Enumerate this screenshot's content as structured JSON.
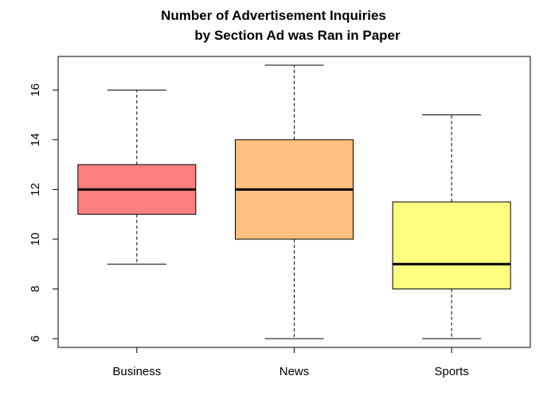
{
  "chart_data": {
    "type": "box",
    "title_line1": "Number of Advertisement Inquiries",
    "title_line2": "by Section Ad was Ran in Paper",
    "categories": [
      "Business",
      "News",
      "Sports"
    ],
    "boxes": [
      {
        "category": "Business",
        "min": 9,
        "q1": 11,
        "median": 12,
        "q3": 13,
        "max": 16,
        "color": "#FF7F7F"
      },
      {
        "category": "News",
        "min": 6,
        "q1": 10,
        "median": 12,
        "q3": 14,
        "max": 17,
        "color": "#FFBF7F"
      },
      {
        "category": "Sports",
        "min": 6,
        "q1": 8,
        "median": 9,
        "q3": 11.5,
        "max": 15,
        "color": "#FFFF7F"
      }
    ],
    "ylim": [
      5.65,
      17.35
    ],
    "yticks": [
      6,
      8,
      10,
      12,
      14,
      16
    ],
    "grid": false
  }
}
